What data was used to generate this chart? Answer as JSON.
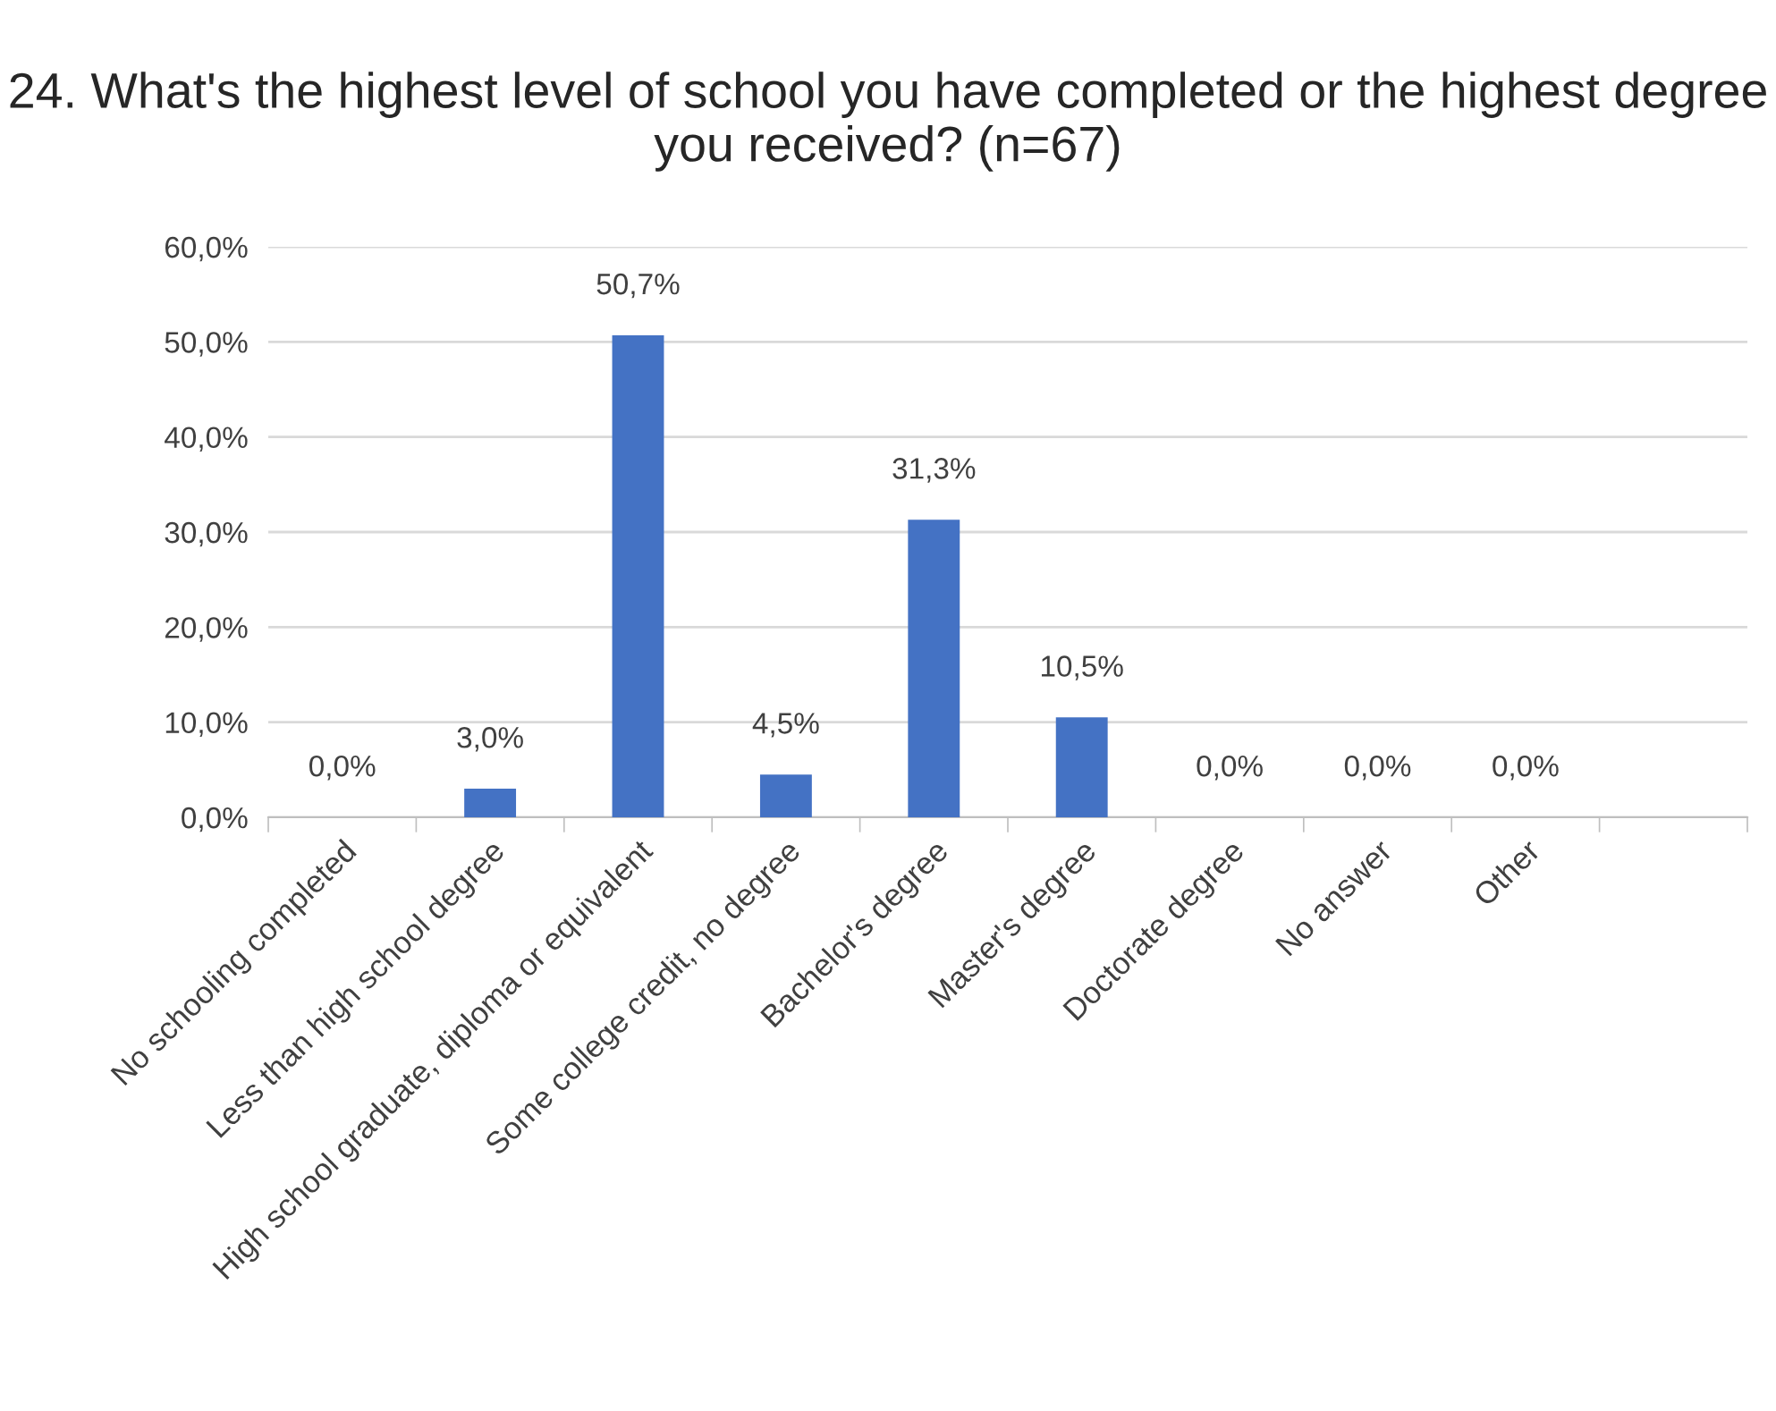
{
  "chart_data": {
    "type": "bar",
    "title": "24. What's the highest level of school you have completed or the highest degree you received? (n=67)",
    "categories": [
      "No schooling completed",
      "Less than high school degree",
      "High school graduate, diploma or equivalent",
      "Some college credit, no degree",
      "Bachelor's degree",
      "Master's degree",
      "Doctorate degree",
      "No answer",
      "Other",
      null
    ],
    "values": [
      0.0,
      3.0,
      50.7,
      4.5,
      31.3,
      10.5,
      0.0,
      0.0,
      0.0,
      null
    ],
    "value_labels": [
      "0,0%",
      "3,0%",
      "50,7%",
      "4,5%",
      "31,3%",
      "10,5%",
      "0,0%",
      "0,0%",
      "0,0%",
      null
    ],
    "color": "#4472c4",
    "ylim": [
      0,
      60
    ],
    "yticks": [
      {
        "value": 0,
        "label": "0,0%"
      },
      {
        "value": 10,
        "label": "10,0%"
      },
      {
        "value": 20,
        "label": "20,0%"
      },
      {
        "value": 30,
        "label": "30,0%"
      },
      {
        "value": 40,
        "label": "40,0%"
      },
      {
        "value": 50,
        "label": "50,0%"
      },
      {
        "value": 60,
        "label": "60,0%"
      }
    ],
    "grid": "y",
    "legend": false
  }
}
